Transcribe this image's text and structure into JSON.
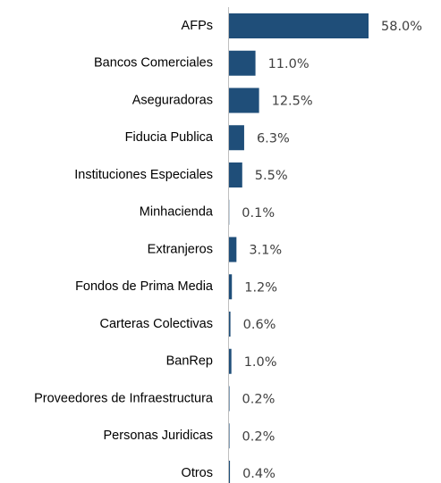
{
  "chart_data": {
    "type": "hbar",
    "categories": [
      "AFPs",
      "Bancos Comerciales",
      "Aseguradoras",
      "Fiducia Publica",
      "Instituciones Especiales",
      "Minhacienda",
      "Extranjeros",
      "Fondos de Prima Media",
      "Carteras Colectivas",
      "BanRep",
      "Proveedores de Infraestructura",
      "Personas Juridicas",
      "Otros"
    ],
    "values": [
      58.0,
      11.0,
      12.5,
      6.3,
      5.5,
      0.1,
      3.1,
      1.2,
      0.6,
      1.0,
      0.2,
      0.2,
      0.4
    ],
    "value_labels": [
      "58.0%",
      "11.0%",
      "12.5%",
      "6.3%",
      "5.5%",
      "0.1%",
      "3.1%",
      "1.2%",
      "0.6%",
      "1.0%",
      "0.2%",
      "0.2%",
      "0.4%"
    ],
    "color": "#1f4e79"
  }
}
